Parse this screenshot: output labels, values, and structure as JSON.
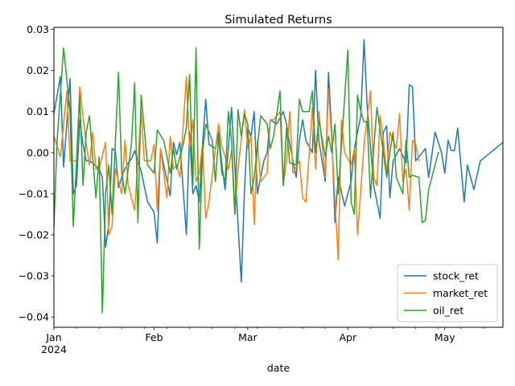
{
  "chart_data": {
    "type": "line",
    "title": "Simulated Returns",
    "xlabel": "date",
    "ylabel": "",
    "xlim": [
      "2024-01-01",
      "2024-05-19"
    ],
    "ylim": [
      -0.0425,
      0.0305
    ],
    "grid": false,
    "legend_position": "bottom-right",
    "colors": {
      "stock_ret": "#1f77b4",
      "market_ret": "#ff7f0e",
      "oil_ret": "#2ca02c"
    },
    "y_ticks": [
      {
        "value": 0.03,
        "label": "0.03"
      },
      {
        "value": 0.02,
        "label": "0.02"
      },
      {
        "value": 0.01,
        "label": "0.01"
      },
      {
        "value": 0.0,
        "label": "0.00"
      },
      {
        "value": -0.01,
        "label": "−0.01"
      },
      {
        "value": -0.02,
        "label": "−0.02"
      },
      {
        "value": -0.03,
        "label": "−0.03"
      },
      {
        "value": -0.04,
        "label": "−0.04"
      }
    ],
    "x_ticks": [
      {
        "date": "2024-01-01",
        "label": "Jan",
        "sublabel": "2024"
      },
      {
        "date": "2024-02-01",
        "label": "Feb",
        "sublabel": ""
      },
      {
        "date": "2024-03-01",
        "label": "Mar",
        "sublabel": ""
      },
      {
        "date": "2024-04-01",
        "label": "Apr",
        "sublabel": ""
      },
      {
        "date": "2024-05-01",
        "label": "May",
        "sublabel": ""
      }
    ],
    "x_minor_ticks": [
      "2024-01-08",
      "2024-01-15",
      "2024-01-22",
      "2024-01-29",
      "2024-02-05",
      "2024-02-12",
      "2024-02-19",
      "2024-02-26",
      "2024-03-04",
      "2024-03-11",
      "2024-03-18",
      "2024-03-25",
      "2024-04-08",
      "2024-04-15",
      "2024-04-22",
      "2024-04-29",
      "2024-05-06",
      "2024-05-13"
    ],
    "start_date": "2024-01-01",
    "series": [
      {
        "name": "stock_ret",
        "values": [
          0.0095,
          0.0185,
          -0.0035,
          0.018,
          -0.01,
          -0.008,
          0.008,
          0.002,
          -0.002,
          -0.002,
          -0.0025,
          -0.004,
          -0.006,
          -0.023,
          -0.0175,
          0.001,
          0.0005,
          -0.0085,
          -0.006,
          -0.004,
          -0.0025,
          -0.0015,
          0.0005,
          -0.002,
          -0.0045,
          -0.012,
          -0.0145,
          -0.022,
          0.001,
          -0.003,
          -0.0105,
          0.0025,
          -0.0005,
          0.0025,
          -0.02,
          0.005,
          -0.01,
          -0.008,
          -0.012,
          0.002,
          0.013,
          0.002,
          0.001,
          0.005,
          -0.003,
          -0.009,
          0.011,
          -0.0315,
          -0.009,
          0.006,
          0.004,
          0.01,
          -0.01,
          -0.002,
          0.0,
          0.008,
          0.007,
          0.01,
          0.007,
          0.002,
          -0.006,
          0.003,
          0.008,
          0.003,
          0.0,
          0.02,
          0.003,
          -0.007,
          0.0195,
          0.005,
          -0.017,
          -0.006,
          -0.013,
          -0.007,
          0.001,
          0.009,
          0.0275,
          0.011,
          -0.008,
          -0.016,
          0.005,
          0.0065,
          -0.011,
          -0.002,
          0.001,
          -0.0025,
          0.0165,
          0.016,
          -0.002,
          -0.001,
          0.001,
          -0.006,
          0.005,
          0.0,
          -0.005,
          0.003,
          0.0005,
          0.0005,
          0.006,
          -0.012,
          -0.003,
          -0.009,
          -0.0055,
          -0.002,
          0.0025
        ],
        "step_days": [
          0,
          2,
          3,
          5,
          6,
          7,
          8,
          9,
          10,
          11,
          12,
          14,
          15,
          16,
          17,
          18,
          19,
          20,
          21,
          22,
          23,
          24,
          25,
          26,
          27,
          29,
          31,
          32,
          33,
          34,
          36,
          37,
          38,
          39,
          41,
          42,
          43,
          44,
          45,
          46,
          47,
          48,
          50,
          51,
          52,
          53,
          55,
          58,
          59,
          60,
          61,
          62,
          63,
          65,
          66,
          67,
          69,
          71,
          72,
          73,
          75,
          76,
          77,
          78,
          80,
          81,
          82,
          84,
          85,
          86,
          87,
          88,
          90,
          92,
          93,
          95,
          96,
          97,
          99,
          101,
          102,
          103,
          104,
          105,
          107,
          109,
          110,
          111,
          112,
          113,
          115,
          116,
          118,
          120,
          121,
          122,
          123,
          124,
          125,
          127,
          128,
          130,
          131,
          132,
          139
        ]
      },
      {
        "name": "market_ret",
        "values": [
          0.004,
          -0.001,
          0.015,
          -0.002,
          -0.002,
          0.016,
          0.002,
          -0.003,
          0.005,
          -0.004,
          -0.004,
          0.0025,
          -0.02,
          -0.018,
          -0.004,
          -0.01,
          0.003,
          -0.008,
          -0.014,
          0.01,
          -0.002,
          -0.002,
          0.002,
          -0.014,
          0.001,
          -0.011,
          0.004,
          -0.004,
          -0.003,
          -0.006,
          0.0185,
          0.001,
          0.008,
          -0.007,
          -0.005,
          0.002,
          -0.016,
          -0.012,
          0.001,
          0.007,
          0.0015,
          -0.001,
          -0.004,
          0.0005,
          -0.015,
          -0.004,
          0.0105,
          0.001,
          0.004,
          -0.0175,
          0.003,
          -0.007,
          -0.005,
          0.008,
          0.008,
          0.01,
          -0.008,
          -0.002,
          0.01,
          -0.005,
          -0.002,
          -0.011,
          -0.012,
          0.011,
          -0.004,
          0.01,
          0.002,
          -0.006,
          0.0155,
          0.003,
          -0.026,
          0.008,
          0.0,
          -0.003,
          0.001,
          -0.02,
          0.002,
          0.015,
          -0.006,
          -0.008,
          0.009,
          0.003,
          -0.005,
          0.005,
          0.003,
          0.001,
          0.0095,
          -0.007,
          -0.004,
          -0.014,
          0.003,
          0.002,
          -0.002
        ],
        "step_days": [
          0,
          2,
          4,
          5,
          7,
          8,
          10,
          11,
          12,
          13,
          14,
          16,
          17,
          18,
          19,
          21,
          22,
          23,
          25,
          27,
          28,
          30,
          31,
          32,
          33,
          35,
          36,
          37,
          38,
          39,
          41,
          42,
          43,
          44,
          45,
          46,
          47,
          48,
          50,
          51,
          52,
          53,
          54,
          55,
          56,
          57,
          59,
          60,
          61,
          62,
          63,
          64,
          66,
          67,
          68,
          70,
          71,
          72,
          73,
          74,
          76,
          77,
          78,
          80,
          81,
          82,
          83,
          84,
          85,
          86,
          88,
          89,
          90,
          92,
          93,
          94,
          96,
          98,
          99,
          100,
          101,
          102,
          103,
          104,
          105,
          106,
          107,
          108,
          109,
          110,
          111,
          112,
          113
        ]
      },
      {
        "name": "oil_ret",
        "values": [
          -0.018,
          0.003,
          0.0255,
          0.01,
          -0.018,
          -0.002,
          0.014,
          -0.008,
          0.005,
          0.009,
          -0.011,
          -0.001,
          -0.039,
          -0.01,
          -0.003,
          -0.015,
          0.0195,
          -0.005,
          -0.01,
          0.002,
          0.017,
          -0.017,
          0.014,
          -0.003,
          -0.005,
          0.0055,
          0.003,
          -0.005,
          0.001,
          -0.004,
          0.002,
          0.006,
          0.019,
          -0.008,
          0.0255,
          -0.0235,
          0.0,
          0.007,
          0.003,
          -0.007,
          0.004,
          -0.005,
          -0.007,
          0.01,
          0.003,
          -0.015,
          0.0105,
          0.004,
          0.0095,
          0.007,
          -0.01,
          -0.006,
          0.009,
          0.007,
          0.001,
          0.004,
          0.015,
          -0.008,
          0.006,
          -0.0025,
          -0.003,
          0.013,
          0.01,
          0.01,
          0.015,
          0.0,
          0.008,
          -0.001,
          0.004,
          0.0,
          0.007,
          -0.01,
          0.025,
          -0.012,
          -0.015,
          0.014,
          0.01,
          0.0075,
          0.0075,
          -0.011,
          0.001,
          0.011,
          0.0,
          -0.006,
          0.0,
          0.005,
          -0.006,
          -0.01,
          0.003,
          -0.006,
          -0.0055,
          -0.006,
          -0.017,
          -0.0165,
          -0.009,
          -0.003,
          0.0
        ],
        "step_days": [
          0,
          1,
          3,
          5,
          6,
          7,
          8,
          9,
          10,
          11,
          13,
          14,
          15,
          16,
          17,
          18,
          20,
          21,
          22,
          24,
          25,
          26,
          27,
          29,
          31,
          32,
          34,
          36,
          37,
          38,
          40,
          41,
          42,
          43,
          44,
          45,
          46,
          47,
          49,
          50,
          51,
          52,
          53,
          54,
          55,
          56,
          57,
          58,
          59,
          60,
          61,
          62,
          64,
          66,
          67,
          68,
          70,
          71,
          72,
          73,
          75,
          76,
          77,
          79,
          80,
          81,
          82,
          84,
          85,
          86,
          87,
          88,
          91,
          92,
          93,
          94,
          95,
          96,
          97,
          98,
          99,
          100,
          102,
          103,
          104,
          105,
          106,
          108,
          109,
          110,
          111,
          113,
          114,
          115,
          116,
          118,
          119
        ]
      }
    ]
  }
}
